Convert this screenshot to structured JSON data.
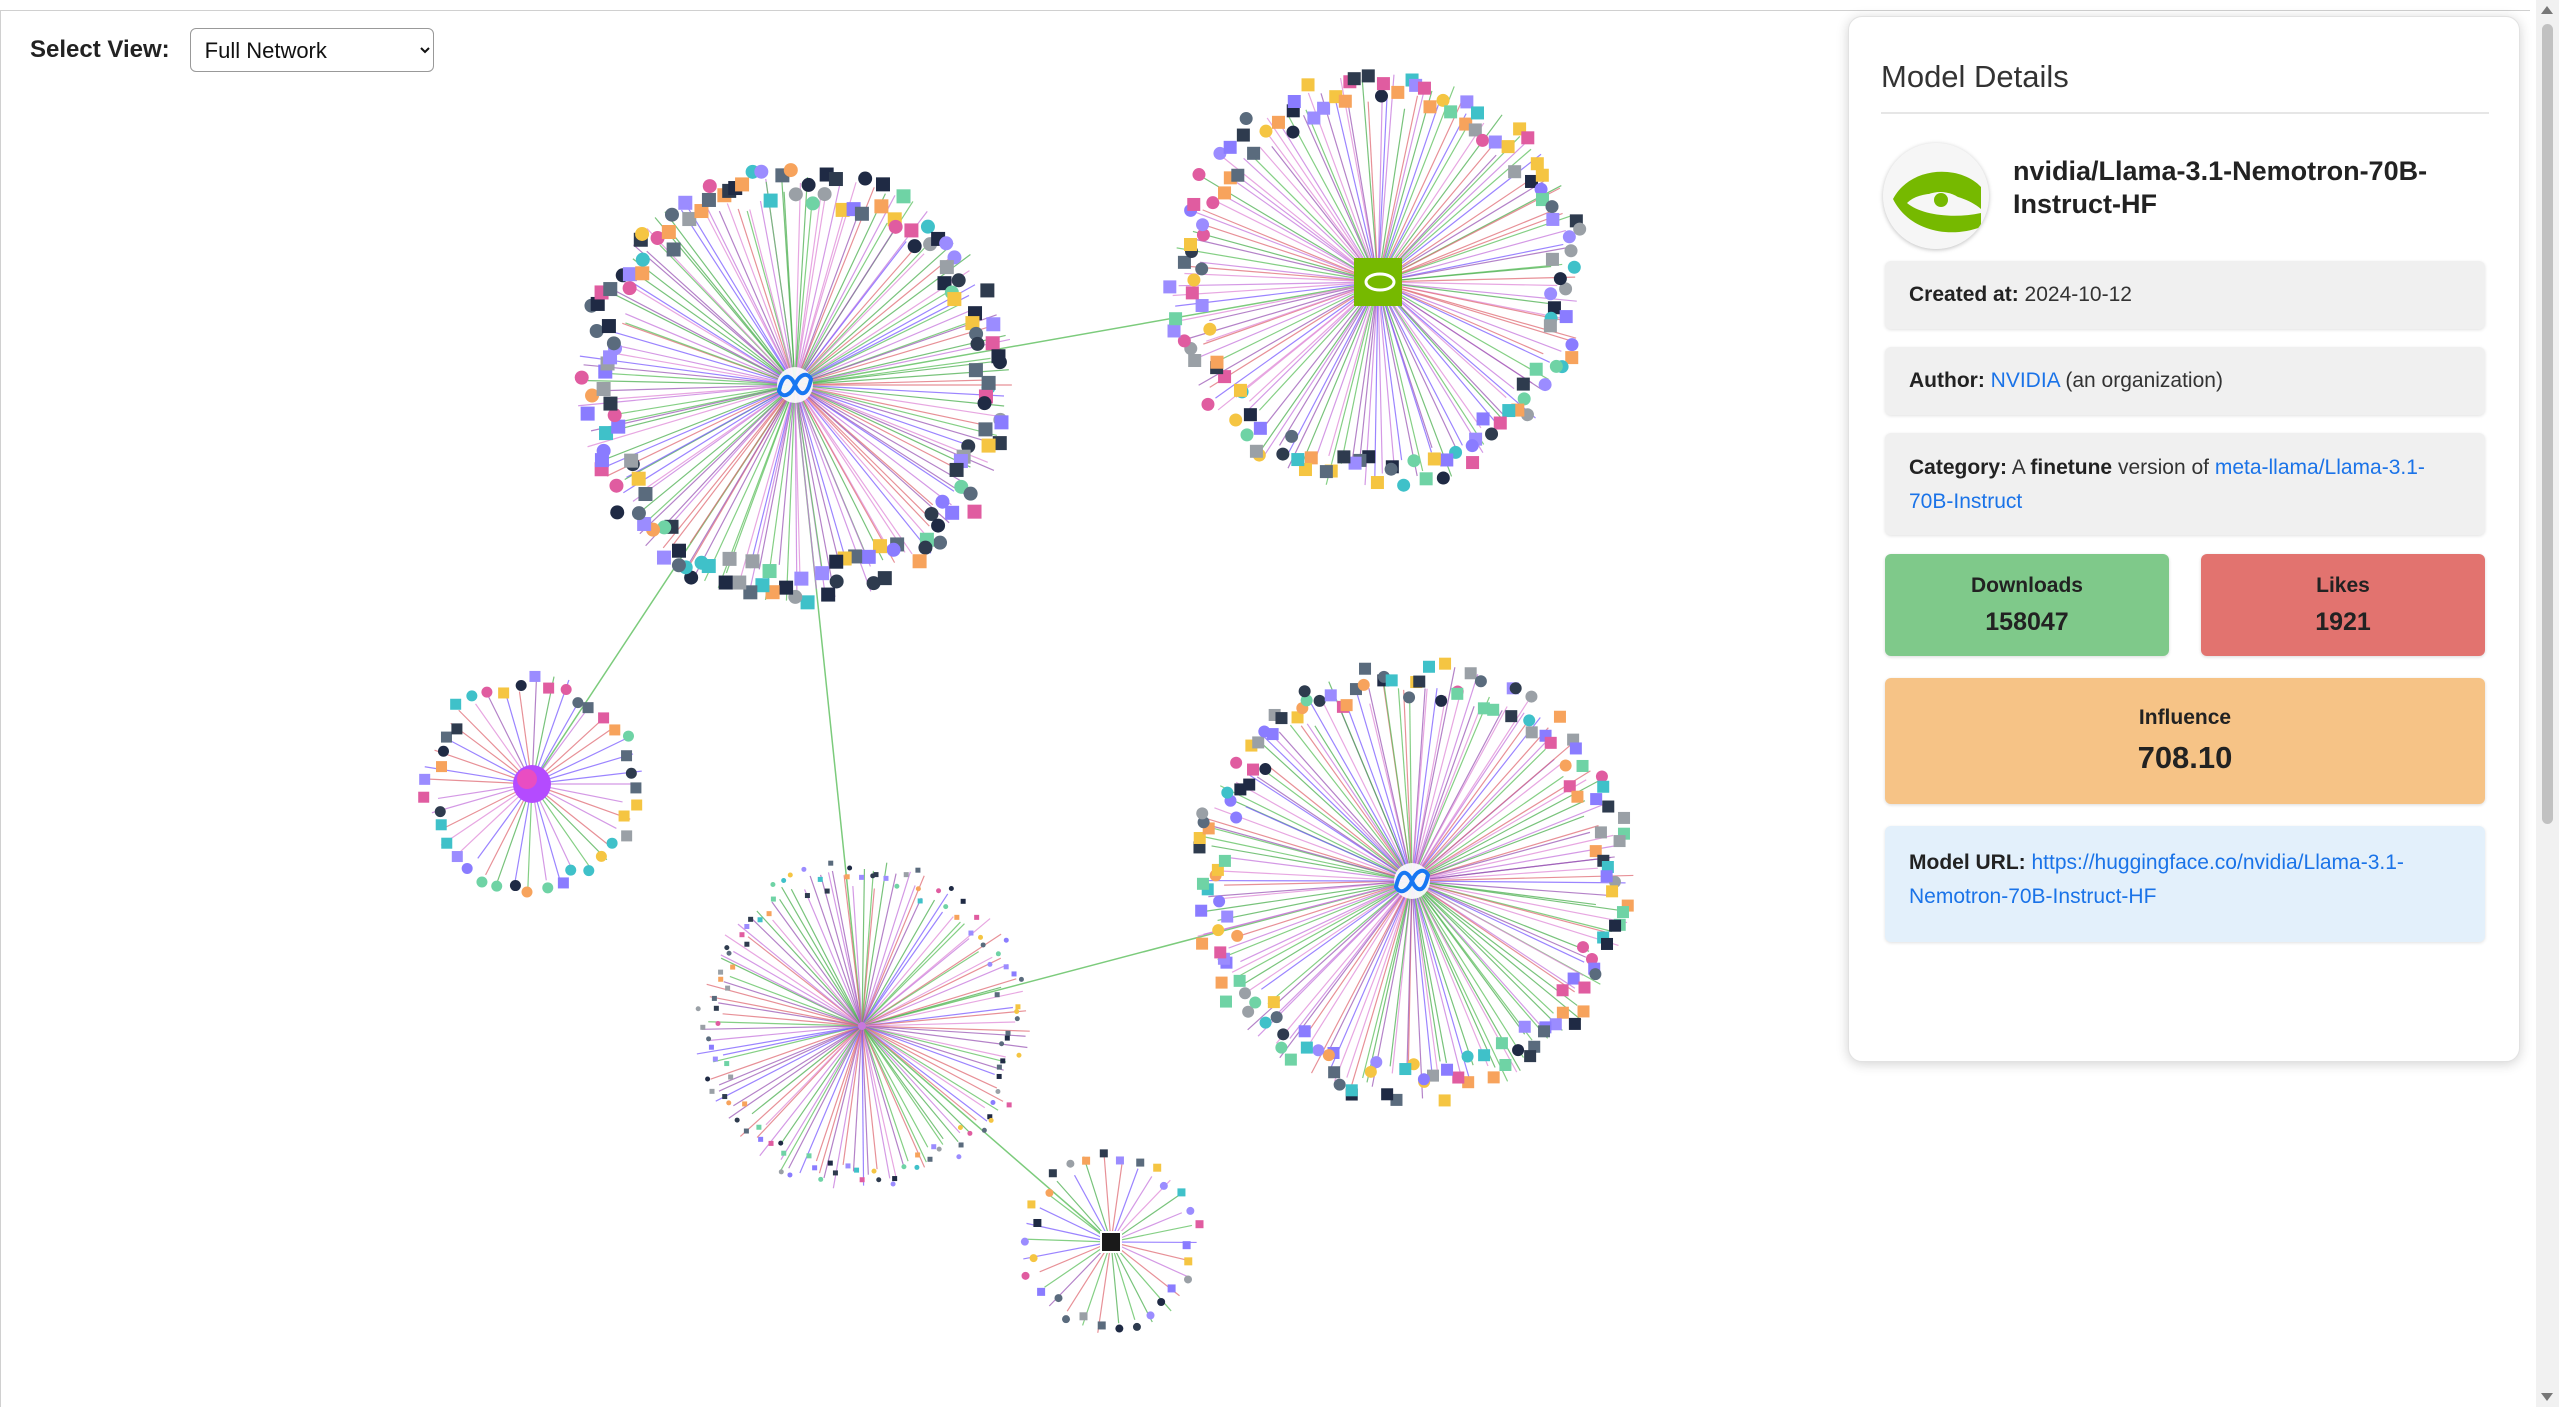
{
  "controls": {
    "select_view_label": "Select View:",
    "select_view_value": "Full Network"
  },
  "details": {
    "panel_title": "Model Details",
    "model_name": "nvidia/Llama-3.1-Nemotron-70B-Instruct-HF",
    "created_label": "Created at:",
    "created_value": "2024-10-12",
    "author_label": "Author:",
    "author_link": "NVIDIA",
    "author_suffix": "(an organization)",
    "category_label": "Category:",
    "category_prefix": "A",
    "category_type": "finetune",
    "category_middle": "version of",
    "category_link": "meta-llama/Llama-3.1-70B-Instruct",
    "downloads_label": "Downloads",
    "downloads_value": "158047",
    "likes_label": "Likes",
    "likes_value": "1921",
    "influence_label": "Influence",
    "influence_value": "708.10",
    "url_label": "Model URL:",
    "url_value": "https://huggingface.co/nvidia/Llama-3.1-Nemotron-70B-Instruct-HF"
  },
  "colors": {
    "downloads_bg": "#7fc98a",
    "likes_bg": "#e2736f",
    "influence_bg": "#f6c386",
    "url_bg": "#e3f0fb",
    "link": "#1a73e8",
    "nvidia_green": "#76b900",
    "meta_blue": "#1877f2"
  },
  "network": {
    "clusters": [
      {
        "id": "meta-llama-root-cluster",
        "hub_icon": "meta-logo-icon",
        "children": 150
      },
      {
        "id": "nvidia-cluster",
        "hub_icon": "nvidia-logo-icon",
        "children": 130
      },
      {
        "id": "small-left-cluster",
        "hub_icon": "gradient-avatar-icon",
        "children": 40
      },
      {
        "id": "meta-llama-second-cluster",
        "hub_icon": "meta-logo-icon",
        "children": 150
      },
      {
        "id": "sparse-bottom-cluster",
        "hub_icon": "none",
        "children": 110
      },
      {
        "id": "small-bottom-cluster",
        "hub_icon": "dark-square-icon",
        "children": 30
      }
    ]
  }
}
